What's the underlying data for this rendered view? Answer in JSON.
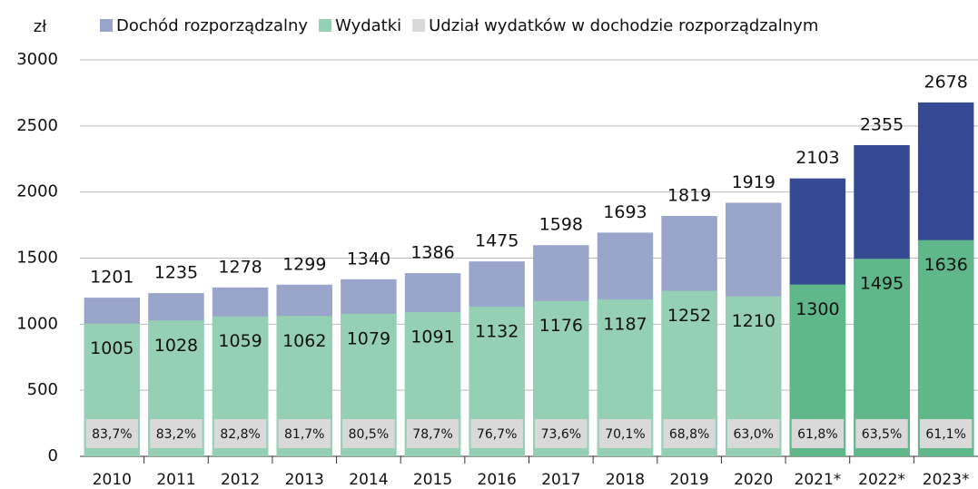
{
  "chart_data": {
    "type": "bar",
    "y_unit": "zł",
    "categories": [
      "2010",
      "2011",
      "2012",
      "2013",
      "2014",
      "2015",
      "2016",
      "2017",
      "2018",
      "2019",
      "2020",
      "2021*",
      "2022*",
      "2023*"
    ],
    "series": [
      {
        "name": "Dochód rozporządzalny",
        "color": "#9aa5cb",
        "colors": [
          "#9aa5cb",
          "#9aa5cb",
          "#9aa5cb",
          "#9aa5cb",
          "#9aa5cb",
          "#9aa5cb",
          "#9aa5cb",
          "#9aa5cb",
          "#9aa5cb",
          "#9aa5cb",
          "#9aa5cb",
          "#354a93",
          "#354a93",
          "#354a93"
        ],
        "values": [
          1201,
          1235,
          1278,
          1299,
          1340,
          1386,
          1475,
          1598,
          1693,
          1819,
          1919,
          2103,
          2355,
          2678
        ]
      },
      {
        "name": "Wydatki",
        "color": "#96d0b4",
        "colors": [
          "#96d0b4",
          "#96d0b4",
          "#96d0b4",
          "#96d0b4",
          "#96d0b4",
          "#96d0b4",
          "#96d0b4",
          "#96d0b4",
          "#96d0b4",
          "#96d0b4",
          "#96d0b4",
          "#5fb78a",
          "#5fb78a",
          "#5fb78a"
        ],
        "values": [
          1005,
          1028,
          1059,
          1062,
          1079,
          1091,
          1132,
          1176,
          1187,
          1252,
          1210,
          1300,
          1495,
          1636
        ]
      },
      {
        "name": "Udział wydatków w dochodzie rozporządzalnym",
        "color": "#d9d9d9",
        "values": [
          83.7,
          83.2,
          82.8,
          81.7,
          80.5,
          78.7,
          76.7,
          73.6,
          70.1,
          68.8,
          63.0,
          61.8,
          63.5,
          61.1
        ],
        "value_labels": [
          "83,7%",
          "83,2%",
          "82,8%",
          "81,7%",
          "80,5%",
          "78,7%",
          "76,7%",
          "73,6%",
          "70,1%",
          "68,8%",
          "63,0%",
          "61,8%",
          "63,5%",
          "61,1%"
        ]
      }
    ],
    "ylim": [
      0,
      3000
    ],
    "yticks": [
      0,
      500,
      1000,
      1500,
      2000,
      2500,
      3000
    ],
    "grid": true
  }
}
